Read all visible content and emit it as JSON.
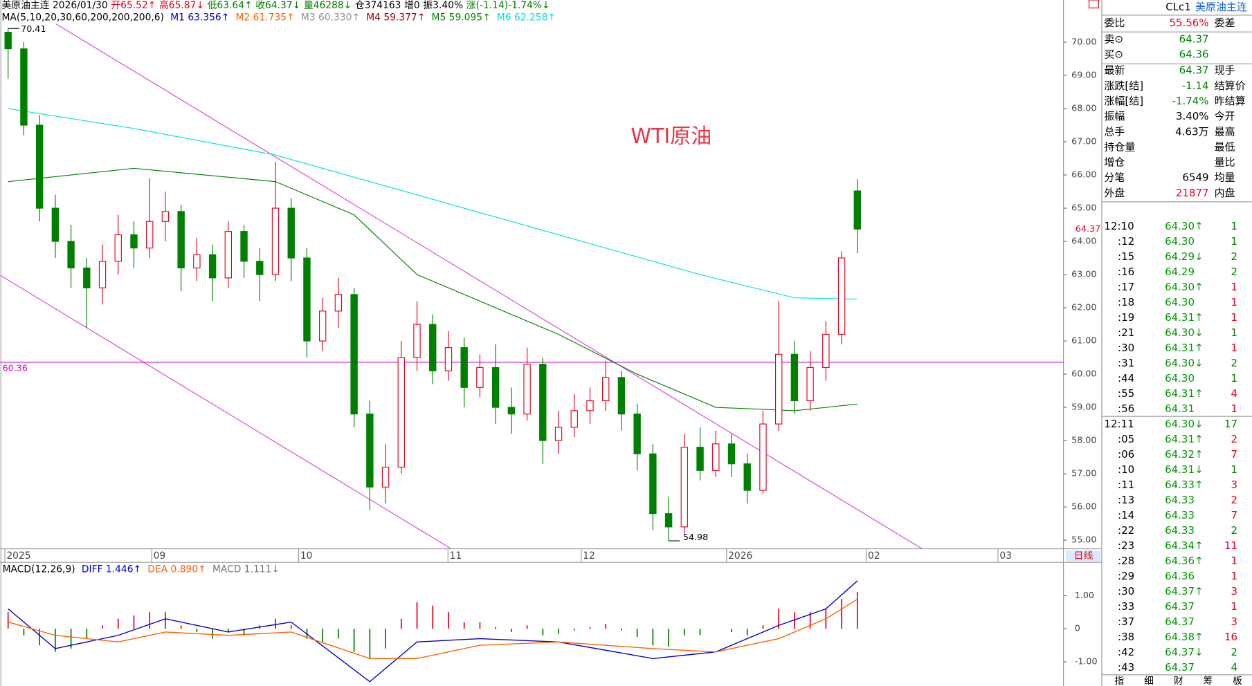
{
  "chart_data": {
    "type": "candlestick",
    "quote_items": [
      {
        "text": "美原油主连 2026/01/30",
        "color": "#000000"
      },
      {
        "text": "开65.52↑",
        "color": "#e8001c"
      },
      {
        "text": "高65.87↓",
        "color": "#e8001c"
      },
      {
        "text": "低63.64↑",
        "color": "#008000"
      },
      {
        "text": "收64.37↓",
        "color": "#008000"
      },
      {
        "text": "量46288↓",
        "color": "#008000"
      },
      {
        "text": "仓374163",
        "color": "#000000"
      },
      {
        "text": "增0",
        "color": "#000000"
      },
      {
        "text": "振3.40%",
        "color": "#000000"
      },
      {
        "text": "涨(-1.14)-1.74%↓",
        "color": "#008000"
      }
    ],
    "ma_label": "MA(5,10,20,30,60,200,200,200,6)",
    "ma_series": [
      {
        "name": "M1 63.356↑",
        "color": "#0000c8"
      },
      {
        "name": "M2 61.735↑",
        "color": "#ff6000"
      },
      {
        "name": "M3 60.330↑",
        "color": "#909090"
      },
      {
        "name": "M4 59.377↑",
        "color": "#a00000"
      },
      {
        "name": "M5 59.095↑",
        "color": "#008000",
        "x": [
          0,
          8,
          17,
          22,
          26,
          35,
          40,
          45,
          50,
          54
        ],
        "values": [
          65.8,
          66.2,
          65.8,
          64.8,
          63.0,
          61.2,
          60.0,
          59.0,
          58.9,
          59.1
        ]
      },
      {
        "name": "M6 62.258↑",
        "color": "#00e0e0",
        "x": [
          0,
          8,
          17,
          26,
          35,
          44,
          50,
          54
        ],
        "values": [
          68.0,
          67.4,
          66.6,
          65.4,
          64.2,
          63.0,
          62.3,
          62.26
        ]
      }
    ],
    "title": "WTI原油",
    "ylim": [
      54.74,
      70.55
    ],
    "yticks": [
      {
        "value": 55,
        "label": "55.00"
      },
      {
        "value": 56,
        "label": "56.00"
      },
      {
        "value": 57,
        "label": "57.00"
      },
      {
        "value": 58,
        "label": "58.00"
      },
      {
        "value": 59,
        "label": "59.00"
      },
      {
        "value": 60,
        "label": "60.00"
      },
      {
        "value": 61,
        "label": "61.00"
      },
      {
        "value": 62,
        "label": "62.00"
      },
      {
        "value": 63,
        "label": "63.00"
      },
      {
        "value": 64,
        "label": "64.00"
      },
      {
        "value": 65,
        "label": "65.00"
      },
      {
        "value": 66,
        "label": "66.00"
      },
      {
        "value": 67,
        "label": "67.00"
      },
      {
        "value": 68,
        "label": "68.00"
      },
      {
        "value": 69,
        "label": "69.00"
      },
      {
        "value": 70,
        "label": "70.00"
      }
    ],
    "hline": 60.36,
    "dates": [
      "2025",
      "09",
      "10",
      "11",
      "12",
      "2026",
      "02",
      "03"
    ],
    "period": "日线",
    "up_color": "#e8001c",
    "down_color": "#008000",
    "candles": [
      [
        70.3,
        70.41,
        68.9,
        69.8
      ],
      [
        69.8,
        70.0,
        67.2,
        67.5
      ],
      [
        67.5,
        67.8,
        64.6,
        65.0
      ],
      [
        65.0,
        65.4,
        63.5,
        64.0
      ],
      [
        64.0,
        64.5,
        62.6,
        63.2
      ],
      [
        63.2,
        63.5,
        61.4,
        62.6
      ],
      [
        62.6,
        63.9,
        62.1,
        63.4
      ],
      [
        63.4,
        64.8,
        63.0,
        64.2
      ],
      [
        64.2,
        64.6,
        63.2,
        63.8
      ],
      [
        63.8,
        65.9,
        63.5,
        64.6
      ],
      [
        64.6,
        65.5,
        64.0,
        64.9
      ],
      [
        64.9,
        65.1,
        62.5,
        63.2
      ],
      [
        63.2,
        64.1,
        62.8,
        63.6
      ],
      [
        63.6,
        63.9,
        62.2,
        62.9
      ],
      [
        62.9,
        64.6,
        62.6,
        64.3
      ],
      [
        64.3,
        64.5,
        62.9,
        63.4
      ],
      [
        63.4,
        63.8,
        62.2,
        63.0
      ],
      [
        63.0,
        66.4,
        62.8,
        65.0
      ],
      [
        65.0,
        65.3,
        62.8,
        63.5
      ],
      [
        63.5,
        63.8,
        60.5,
        61.0
      ],
      [
        61.0,
        62.3,
        60.7,
        61.9
      ],
      [
        61.9,
        62.9,
        61.4,
        62.4
      ],
      [
        62.4,
        62.6,
        58.4,
        58.8
      ],
      [
        58.8,
        59.2,
        55.9,
        56.6
      ],
      [
        56.6,
        57.9,
        56.1,
        57.2
      ],
      [
        57.2,
        61.0,
        57.0,
        60.5
      ],
      [
        60.5,
        62.2,
        60.1,
        61.5
      ],
      [
        61.5,
        61.8,
        59.7,
        60.1
      ],
      [
        60.1,
        61.3,
        59.8,
        60.8
      ],
      [
        60.8,
        61.1,
        59.0,
        59.6
      ],
      [
        59.6,
        60.6,
        59.3,
        60.2
      ],
      [
        60.2,
        60.9,
        58.5,
        59.0
      ],
      [
        59.0,
        59.6,
        58.2,
        58.8
      ],
      [
        58.8,
        60.8,
        58.6,
        60.3
      ],
      [
        60.3,
        60.5,
        57.3,
        58.0
      ],
      [
        58.0,
        58.9,
        57.6,
        58.4
      ],
      [
        58.4,
        59.4,
        58.1,
        58.9
      ],
      [
        58.9,
        59.6,
        58.5,
        59.2
      ],
      [
        59.2,
        60.4,
        58.9,
        59.9
      ],
      [
        59.9,
        60.1,
        58.3,
        58.8
      ],
      [
        58.8,
        59.1,
        57.1,
        57.6
      ],
      [
        57.6,
        57.9,
        55.3,
        55.8
      ],
      [
        55.8,
        56.3,
        54.98,
        55.4
      ],
      [
        55.4,
        58.2,
        55.2,
        57.8
      ],
      [
        57.8,
        58.4,
        56.8,
        57.1
      ],
      [
        57.1,
        58.3,
        56.9,
        57.9
      ],
      [
        57.9,
        58.2,
        56.9,
        57.3
      ],
      [
        57.3,
        57.6,
        56.1,
        56.5
      ],
      [
        56.5,
        58.9,
        56.4,
        58.5
      ],
      [
        58.5,
        62.2,
        58.3,
        60.6
      ],
      [
        60.6,
        61.0,
        58.8,
        59.2
      ],
      [
        59.2,
        60.7,
        58.9,
        60.2
      ],
      [
        60.2,
        61.6,
        59.8,
        61.2
      ],
      [
        61.2,
        63.7,
        60.9,
        63.5
      ],
      [
        65.52,
        65.87,
        63.64,
        64.37
      ]
    ],
    "macd": {
      "label": "MACD(12,26,9)",
      "hist_name": "MACD 1.111↓",
      "ylim": [
        -1.73,
        1.98
      ],
      "yticks": [
        {
          "value": 1,
          "label": "1.00"
        },
        0,
        {
          "value": -1,
          "label": "-1.00"
        }
      ],
      "histogram": [
        0.5,
        -0.2,
        -0.5,
        -0.7,
        -0.6,
        -0.3,
        0.1,
        0.3,
        0.4,
        0.5,
        0.5,
        0.1,
        -0.1,
        -0.3,
        -0.1,
        -0.2,
        0.1,
        0.3,
        0.1,
        -0.3,
        -0.4,
        -0.3,
        -0.7,
        -0.9,
        -0.6,
        0.3,
        0.8,
        0.7,
        0.5,
        0.2,
        0.2,
        0.05,
        -0.1,
        0.1,
        -0.2,
        -0.15,
        -0.05,
        0.05,
        0.15,
        -0.05,
        -0.25,
        -0.5,
        -0.55,
        -0.2,
        -0.2,
        0.0,
        -0.1,
        -0.2,
        0.1,
        0.6,
        0.5,
        0.5,
        0.6,
        0.9,
        1.111
      ],
      "lines": [
        {
          "name": "DIFF 1.446↑",
          "color": "#0000c8",
          "x": [
            0,
            3,
            7,
            10,
            14,
            18,
            23,
            26,
            30,
            35,
            41,
            45,
            49,
            52,
            54
          ],
          "values": [
            0.6,
            -0.6,
            -0.2,
            0.3,
            -0.1,
            0.2,
            -1.6,
            -0.4,
            -0.3,
            -0.4,
            -0.9,
            -0.7,
            0.1,
            0.6,
            1.446
          ]
        },
        {
          "name": "DEA 0.890↑",
          "color": "#ff6000",
          "x": [
            0,
            3,
            7,
            10,
            14,
            18,
            23,
            26,
            30,
            35,
            41,
            45,
            49,
            52,
            54
          ],
          "values": [
            0.2,
            -0.2,
            -0.4,
            -0.1,
            -0.2,
            -0.1,
            -0.9,
            -0.9,
            -0.5,
            -0.4,
            -0.6,
            -0.7,
            -0.3,
            0.3,
            0.89
          ]
        }
      ]
    }
  },
  "side_panel": {
    "code": "CLc1",
    "name": "美原油主连",
    "rows": [
      {
        "label": "委比",
        "value": "55.56%",
        "label2": "委差",
        "color": "#e8001c"
      },
      {
        "label": "卖⊙",
        "value": "64.37",
        "color": "#008000"
      },
      {
        "label": "买⊙",
        "value": "64.36",
        "color": "#008000"
      },
      {
        "label": "最新",
        "value": "64.37",
        "label2": "现手",
        "color": "#008000"
      },
      {
        "label": "涨跌[结]",
        "value": "-1.14",
        "label2": "结算价",
        "color": "#008000"
      },
      {
        "label": "涨幅[结]",
        "value": "-1.74%",
        "label2": "昨结算",
        "color": "#008000"
      },
      {
        "label": "振幅",
        "value": "3.40%",
        "label2": "今开",
        "color": "#000000"
      },
      {
        "label": "总手",
        "value": "4.63万",
        "label2": "最高",
        "color": "#000000"
      },
      {
        "label": "持仓量",
        "label2": "最低"
      },
      {
        "label": "增仓",
        "label2": "量比"
      },
      {
        "label": "分笔",
        "value": "6549",
        "label2": "均量",
        "color": "#000000"
      },
      {
        "label": "外盘",
        "value": "21877",
        "label2": "内盘",
        "color": "#e8001c"
      }
    ],
    "ticks": [
      {
        "time": "12:10",
        "price": "64.30↑",
        "vol": 1,
        "color": "#008000"
      },
      {
        "time": ":12",
        "price": "64.30",
        "vol": 1,
        "color": "#008000"
      },
      {
        "time": ":15",
        "price": "64.29↓",
        "vol": 2,
        "color": "#008000"
      },
      {
        "time": ":16",
        "price": "64.29",
        "vol": 2,
        "color": "#008000"
      },
      {
        "time": ":17",
        "price": "64.30↑",
        "vol": 1,
        "color": "#e8001c"
      },
      {
        "time": ":18",
        "price": "64.30",
        "vol": 1,
        "color": "#e8001c"
      },
      {
        "time": ":19",
        "price": "64.31↑",
        "vol": 1,
        "color": "#e8001c"
      },
      {
        "time": ":21",
        "price": "64.30↓",
        "vol": 1,
        "color": "#008000"
      },
      {
        "time": ":30",
        "price": "64.31↑",
        "vol": 1,
        "color": "#e8001c"
      },
      {
        "time": ":31",
        "price": "64.30↓",
        "vol": 2,
        "color": "#008000"
      },
      {
        "time": ":44",
        "price": "64.30",
        "vol": 1,
        "color": "#008000"
      },
      {
        "time": ":55",
        "price": "64.31↑",
        "vol": 4,
        "color": "#e8001c"
      },
      {
        "time": ":56",
        "price": "64.31",
        "vol": 1,
        "color": "#e8001c"
      },
      {
        "time": "12:11",
        "price": "64.30↓",
        "vol": 17,
        "color": "#008000"
      },
      {
        "time": ":05",
        "price": "64.31↑",
        "vol": 2,
        "color": "#e8001c"
      },
      {
        "time": ":06",
        "price": "64.32↑",
        "vol": 7,
        "color": "#e8001c"
      },
      {
        "time": ":10",
        "price": "64.31↓",
        "vol": 1,
        "color": "#008000"
      },
      {
        "time": ":11",
        "price": "64.33↑",
        "vol": 3,
        "color": "#e8001c"
      },
      {
        "time": ":13",
        "price": "64.33",
        "vol": 2,
        "color": "#e8001c"
      },
      {
        "time": ":14",
        "price": "64.33",
        "vol": 7,
        "color": "#e8001c"
      },
      {
        "time": ":22",
        "price": "64.33",
        "vol": 2,
        "color": "#008000"
      },
      {
        "time": ":23",
        "price": "64.34↑",
        "vol": 11,
        "color": "#e8001c"
      },
      {
        "time": ":28",
        "price": "64.36↑",
        "vol": 1,
        "color": "#e8001c"
      },
      {
        "time": ":29",
        "price": "64.36",
        "vol": 1,
        "color": "#e8001c"
      },
      {
        "time": ":30",
        "price": "64.37↑",
        "vol": 3,
        "color": "#e8001c"
      },
      {
        "time": ":33",
        "price": "64.37",
        "vol": 1,
        "color": "#e8001c"
      },
      {
        "time": ":37",
        "price": "64.37",
        "vol": 3,
        "color": "#e8001c"
      },
      {
        "time": ":38",
        "price": "64.38↑",
        "vol": 16,
        "color": "#e8001c"
      },
      {
        "time": ":42",
        "price": "64.37↓",
        "vol": 2,
        "color": "#008000"
      },
      {
        "time": ":43",
        "price": "64.37",
        "vol": 4,
        "color": "#008000"
      }
    ],
    "tabs": [
      "指",
      "细",
      "财",
      "筹",
      "板"
    ]
  }
}
